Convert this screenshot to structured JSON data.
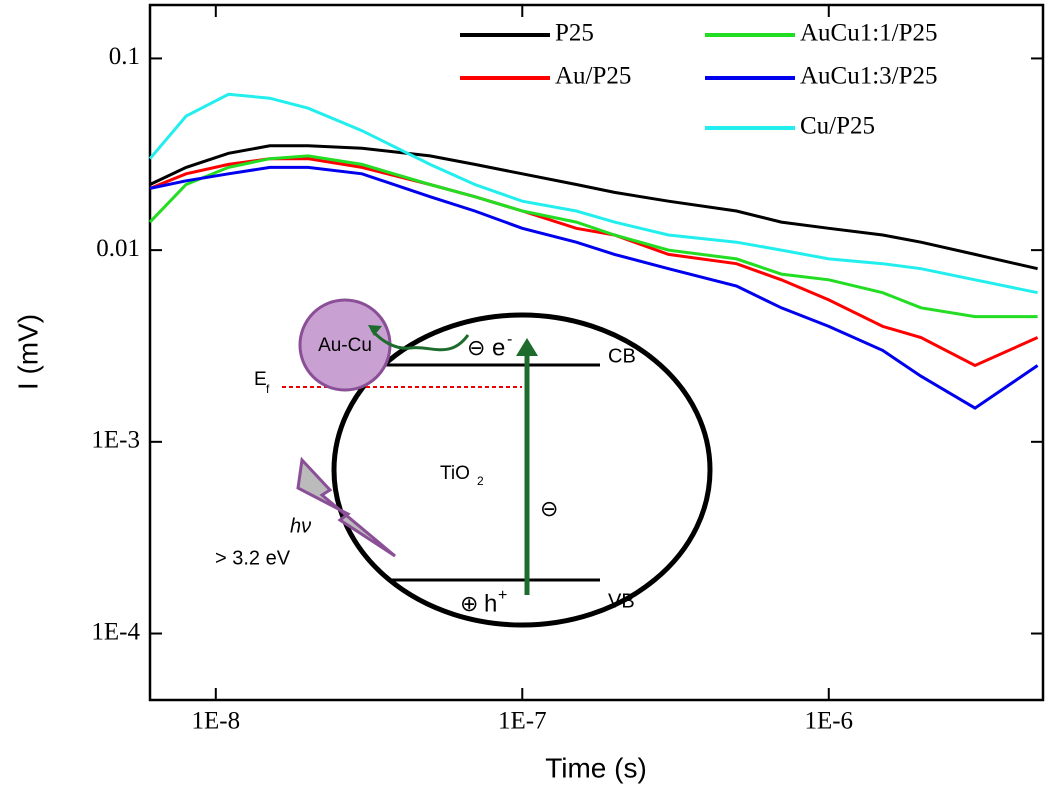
{
  "chart_data": {
    "type": "line",
    "x_label": "Time (s)",
    "y_label": "I (mV)",
    "log_x": true,
    "log_y": true,
    "legend": "upper right",
    "xlim": [
      6.1e-09,
      5e-06
    ],
    "xticks": [
      {
        "value": 1e-08,
        "label": "1E-8"
      },
      {
        "value": 1e-07,
        "label": "1E-7"
      },
      {
        "value": 1e-06,
        "label": "1E-6"
      }
    ],
    "ylim": [
      4.5e-05,
      0.19
    ],
    "yticks": [
      {
        "value": 0.0001,
        "label": "1E-4"
      },
      {
        "value": 0.001,
        "label": "1E-3"
      },
      0.01,
      0.1
    ],
    "x": [
      6.1e-09,
      8e-09,
      1.1e-08,
      1.5e-08,
      2e-08,
      3e-08,
      5e-08,
      7e-08,
      1e-07,
      1.5e-07,
      2e-07,
      3e-07,
      5e-07,
      7e-07,
      1e-06,
      1.5e-06,
      2e-06,
      3e-06,
      4.8e-06
    ],
    "series": [
      {
        "name": "P25",
        "color": "#000000",
        "values": [
          0.022,
          0.027,
          0.032,
          0.035,
          0.035,
          0.034,
          0.031,
          0.028,
          0.025,
          0.022,
          0.02,
          0.018,
          0.016,
          0.014,
          0.013,
          0.012,
          0.011,
          0.0095,
          0.008
        ]
      },
      {
        "name": "Au/P25",
        "color": "#ff0000",
        "values": [
          0.021,
          0.025,
          0.028,
          0.03,
          0.03,
          0.027,
          0.022,
          0.019,
          0.016,
          0.013,
          0.012,
          0.0095,
          0.0085,
          0.007,
          0.0055,
          0.004,
          0.0035,
          0.0025,
          0.0035
        ]
      },
      {
        "name": "AuCu1:1/P25",
        "color": "#22dd22",
        "values": [
          0.014,
          0.022,
          0.027,
          0.03,
          0.031,
          0.028,
          0.022,
          0.019,
          0.016,
          0.014,
          0.012,
          0.01,
          0.009,
          0.0075,
          0.007,
          0.006,
          0.005,
          0.0045,
          0.0045
        ]
      },
      {
        "name": "AuCu1:3/P25",
        "color": "#0000ee",
        "values": [
          0.021,
          0.023,
          0.025,
          0.027,
          0.027,
          0.025,
          0.019,
          0.016,
          0.013,
          0.011,
          0.0095,
          0.008,
          0.0065,
          0.005,
          0.004,
          0.003,
          0.0022,
          0.0015,
          0.0025
        ]
      },
      {
        "name": "Cu/P25",
        "color": "#22eeee",
        "values": [
          0.03,
          0.05,
          0.065,
          0.062,
          0.055,
          0.042,
          0.028,
          0.022,
          0.018,
          0.016,
          0.014,
          0.012,
          0.011,
          0.01,
          0.009,
          0.0085,
          0.008,
          0.007,
          0.006
        ]
      }
    ]
  },
  "inset": {
    "metal": "Au-Cu",
    "fermi": "E",
    "fermi_sub": "f",
    "cb": "CB",
    "vb": "VB",
    "semiconductor": "TiO",
    "semiconductor_sub": "2",
    "photon": "hν",
    "energy": "> 3.2 eV",
    "electron_sign": "⊖",
    "electron": "e",
    "electron_sup": "-",
    "hole_sign": "⊕",
    "hole": "h",
    "hole_sup": "+",
    "transit_sign": "⊖"
  }
}
